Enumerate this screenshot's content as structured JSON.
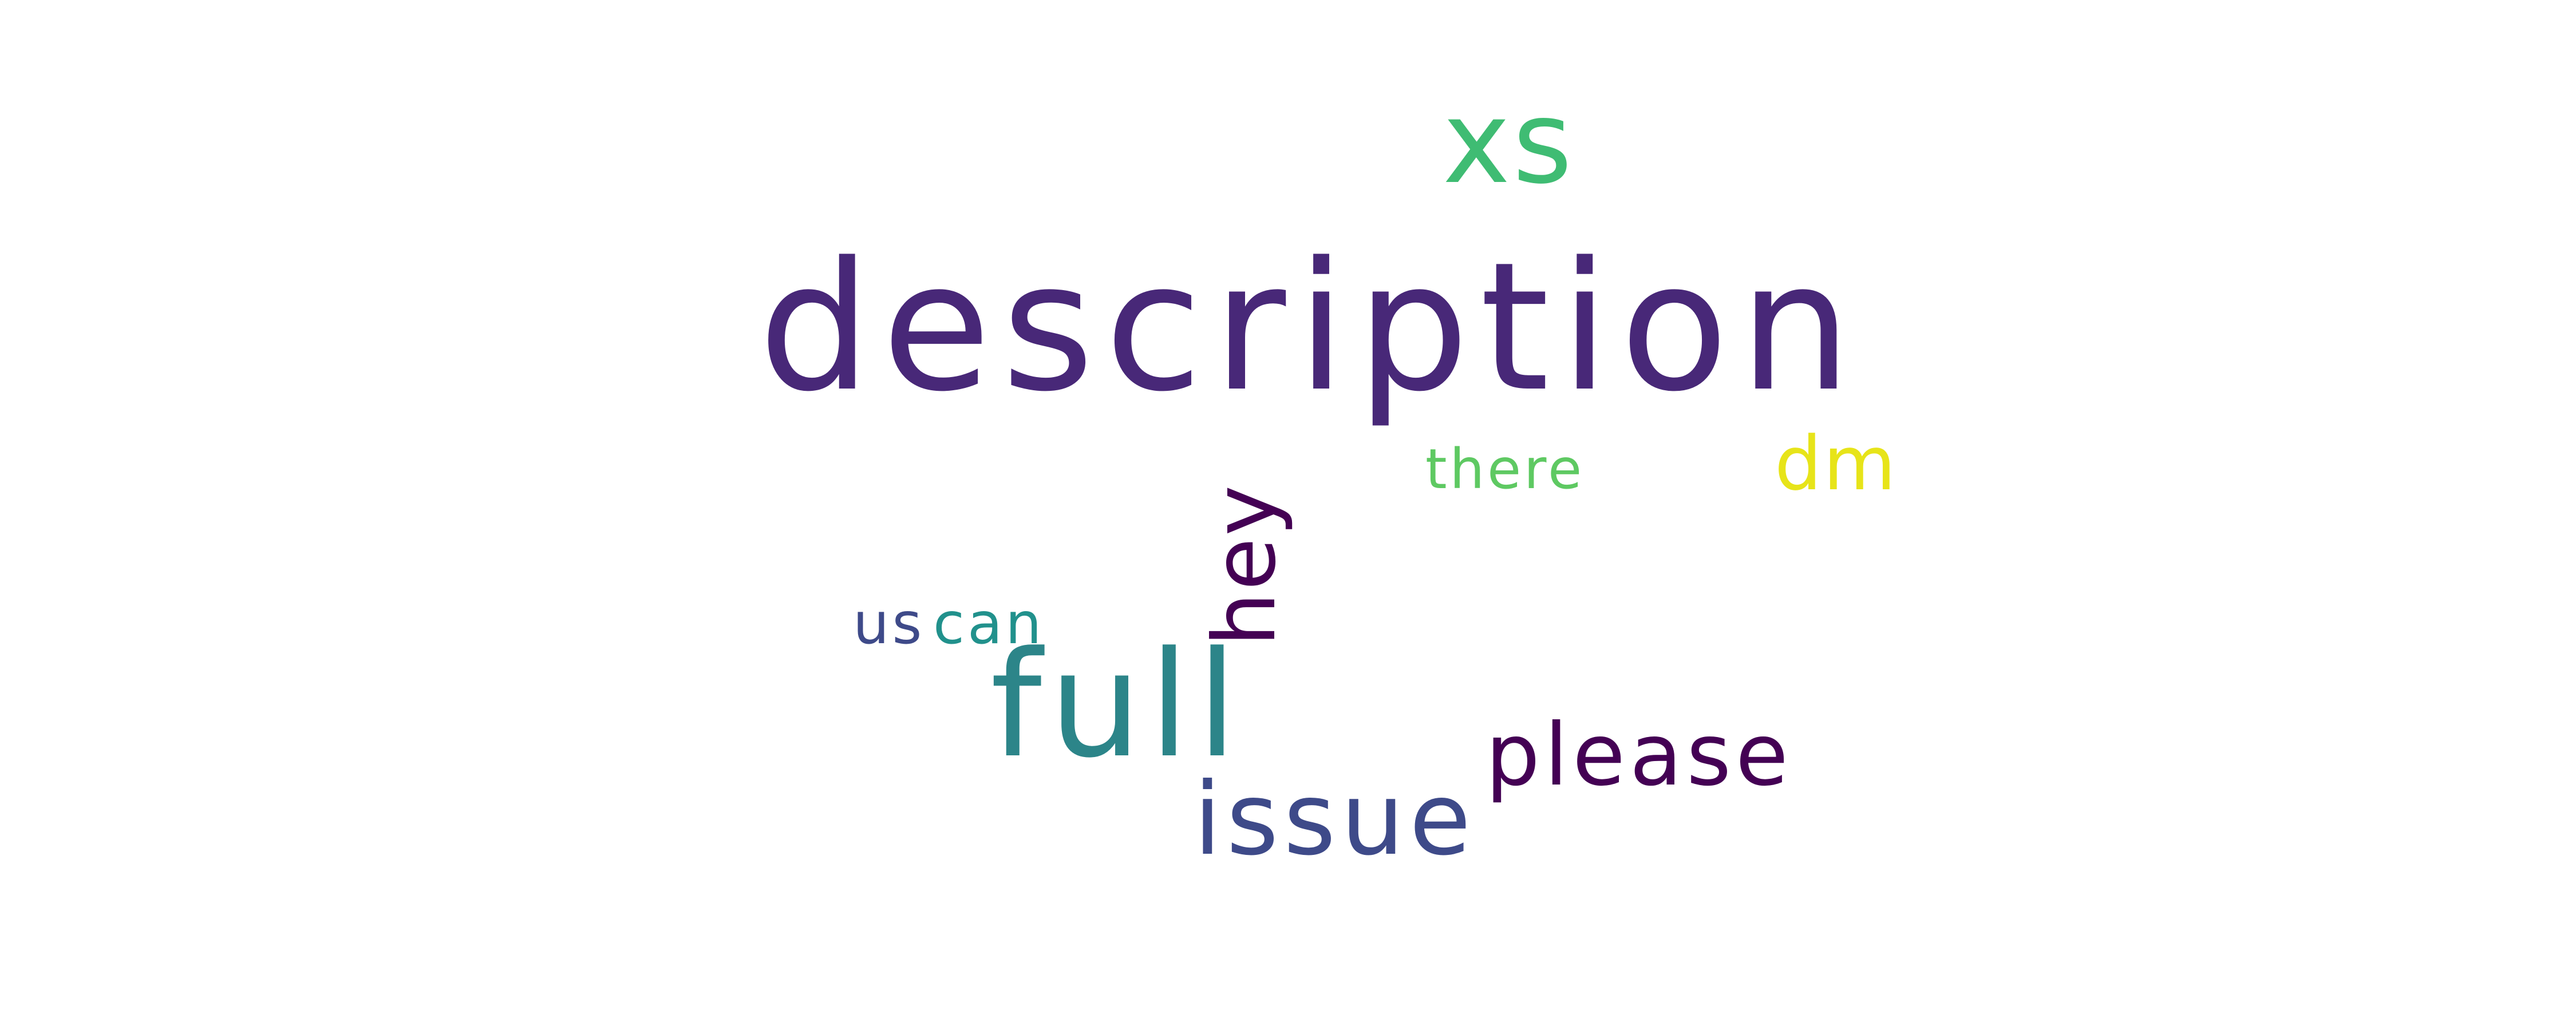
{
  "word_cloud": {
    "background": "#ffffff",
    "words": [
      {
        "text": "description",
        "color": "#482878"
      },
      {
        "text": "xs",
        "color": "#3fbc73"
      },
      {
        "text": "full",
        "color": "#2c8589"
      },
      {
        "text": "issue",
        "color": "#3e4a89"
      },
      {
        "text": "please",
        "color": "#440154"
      },
      {
        "text": "hey",
        "color": "#440154",
        "orientation": "vertical"
      },
      {
        "text": "dm",
        "color": "#e7e419"
      },
      {
        "text": "there",
        "color": "#5ec962"
      },
      {
        "text": "us",
        "color": "#3e4a89"
      },
      {
        "text": "can",
        "color": "#21918c"
      }
    ]
  }
}
